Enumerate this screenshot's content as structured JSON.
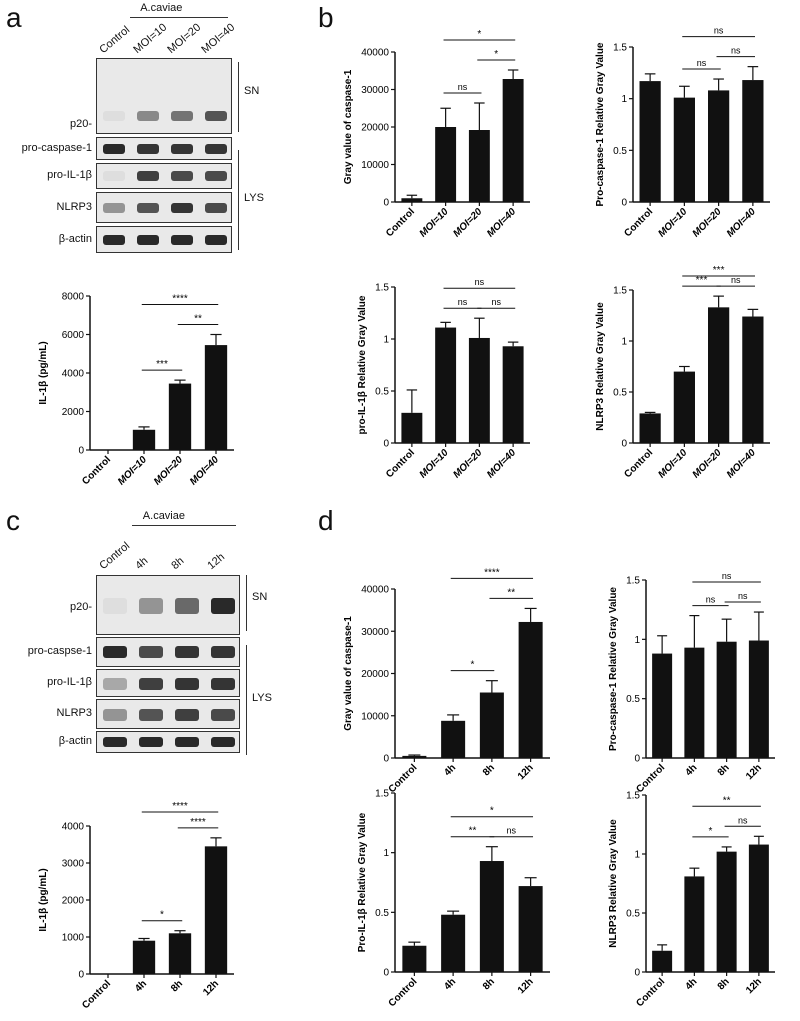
{
  "panels": {
    "a": {
      "letter": "a",
      "blot": {
        "group_label": "A.caviae",
        "lanes": [
          "Control",
          "MOI=10",
          "MOI=20",
          "MOI=40"
        ],
        "rows": [
          {
            "label": "p20-",
            "intensity": [
              0.0,
              0.45,
              0.55,
              0.7
            ]
          },
          {
            "label": "pro-caspase-1",
            "intensity": [
              0.9,
              0.85,
              0.85,
              0.85
            ]
          },
          {
            "label": "pro-IL-1β",
            "intensity": [
              0.05,
              0.8,
              0.75,
              0.75
            ]
          },
          {
            "label": "NLRP3",
            "intensity": [
              0.4,
              0.7,
              0.85,
              0.75
            ]
          },
          {
            "label": "β-actin",
            "intensity": [
              0.9,
              0.9,
              0.9,
              0.9
            ]
          }
        ],
        "sn": "SN",
        "lys": "LYS"
      }
    },
    "b": {
      "letter": "b"
    },
    "c": {
      "letter": "c",
      "blot": {
        "group_label": "A.caviae",
        "lanes": [
          "Control",
          "4h",
          "8h",
          "12h"
        ],
        "rows": [
          {
            "label": "p20-",
            "intensity": [
              0.05,
              0.4,
              0.6,
              0.9
            ]
          },
          {
            "label": "pro-caspse-1",
            "intensity": [
              0.9,
              0.75,
              0.85,
              0.85
            ]
          },
          {
            "label": "pro-IL-1β",
            "intensity": [
              0.3,
              0.8,
              0.85,
              0.85
            ]
          },
          {
            "label": "NLRP3",
            "intensity": [
              0.4,
              0.7,
              0.8,
              0.75
            ]
          },
          {
            "label": "β-actin",
            "intensity": [
              0.9,
              0.9,
              0.9,
              0.9
            ]
          }
        ],
        "sn": "SN",
        "lys": "LYS"
      }
    },
    "d": {
      "letter": "d"
    }
  },
  "chart_data": [
    {
      "id": "a_il1b",
      "type": "bar",
      "categories": [
        "Control",
        "MOI=10",
        "MOI=20",
        "MOI=40"
      ],
      "values": [
        0,
        1050,
        3450,
        5450
      ],
      "errors": [
        0,
        150,
        180,
        550
      ],
      "ylabel": "IL-1β (pg/mL)",
      "ylim": [
        0,
        8000
      ],
      "yticks": [
        0,
        2000,
        4000,
        6000,
        8000
      ],
      "sig": [
        {
          "from": 1,
          "to": 2,
          "label": "***"
        },
        {
          "from": 2,
          "to": 3,
          "label": "**"
        },
        {
          "from": 1,
          "to": 3,
          "label": "****"
        }
      ]
    },
    {
      "id": "b_casp",
      "type": "bar",
      "categories": [
        "Control",
        "MOI=10",
        "MOI=20",
        "MOI=40"
      ],
      "values": [
        1000,
        20000,
        19200,
        32800
      ],
      "errors": [
        800,
        5000,
        7200,
        2400
      ],
      "ylabel": "Gray value of caspase-1",
      "ylim": [
        0,
        40000
      ],
      "yticks": [
        0,
        10000,
        20000,
        30000,
        40000
      ],
      "sig": [
        {
          "from": 1,
          "to": 2,
          "label": "ns"
        },
        {
          "from": 2,
          "to": 3,
          "label": "*"
        },
        {
          "from": 1,
          "to": 3,
          "label": "*"
        }
      ]
    },
    {
      "id": "b_procasp",
      "type": "bar",
      "categories": [
        "Control",
        "MOI=10",
        "MOI=20",
        "MOI=40"
      ],
      "values": [
        1.17,
        1.01,
        1.08,
        1.18
      ],
      "errors": [
        0.07,
        0.11,
        0.11,
        0.13
      ],
      "ylabel": "Pro-caspase-1 Relative Gray Value",
      "ylim": [
        0,
        1.5
      ],
      "yticks": [
        0.0,
        0.5,
        1.0,
        1.5
      ],
      "sig": [
        {
          "from": 1,
          "to": 2,
          "label": "ns"
        },
        {
          "from": 2,
          "to": 3,
          "label": "ns"
        },
        {
          "from": 1,
          "to": 3,
          "label": "ns"
        }
      ]
    },
    {
      "id": "b_proil",
      "type": "bar",
      "categories": [
        "Control",
        "MOI=10",
        "MOI=20",
        "MOI=40"
      ],
      "values": [
        0.29,
        1.11,
        1.01,
        0.93
      ],
      "errors": [
        0.22,
        0.05,
        0.19,
        0.04
      ],
      "ylabel": "pro-IL-1β Relative Gray Value",
      "ylim": [
        0,
        1.5
      ],
      "yticks": [
        0.0,
        0.5,
        1.0,
        1.5
      ],
      "sig": [
        {
          "from": 1,
          "to": 2,
          "label": "ns"
        },
        {
          "from": 2,
          "to": 3,
          "label": "ns"
        },
        {
          "from": 1,
          "to": 3,
          "label": "ns"
        }
      ]
    },
    {
      "id": "b_nlrp3",
      "type": "bar",
      "categories": [
        "Control",
        "MOI=10",
        "MOI=20",
        "MOI=40"
      ],
      "values": [
        0.29,
        0.7,
        1.33,
        1.24
      ],
      "errors": [
        0.01,
        0.05,
        0.11,
        0.07
      ],
      "ylabel": "NLRP3 Relative Gray Value",
      "ylim": [
        0,
        1.5
      ],
      "yticks": [
        0.0,
        0.5,
        1.0,
        1.5
      ],
      "sig": [
        {
          "from": 1,
          "to": 2,
          "label": "***"
        },
        {
          "from": 2,
          "to": 3,
          "label": "ns"
        },
        {
          "from": 1,
          "to": 3,
          "label": "***"
        }
      ]
    },
    {
      "id": "c_il1b",
      "type": "bar",
      "categories": [
        "Control",
        "4h",
        "8h",
        "12h"
      ],
      "values": [
        0,
        900,
        1100,
        3450
      ],
      "errors": [
        0,
        60,
        70,
        230
      ],
      "ylabel": "IL-1β (pg/mL)",
      "ylim": [
        0,
        4000
      ],
      "yticks": [
        0,
        1000,
        2000,
        3000,
        4000
      ],
      "sig": [
        {
          "from": 1,
          "to": 2,
          "label": "*"
        },
        {
          "from": 2,
          "to": 3,
          "label": "****"
        },
        {
          "from": 1,
          "to": 3,
          "label": "****"
        }
      ]
    },
    {
      "id": "d_casp",
      "type": "bar",
      "categories": [
        "Control",
        "4h",
        "8h",
        "12h"
      ],
      "values": [
        500,
        8800,
        15500,
        32200
      ],
      "errors": [
        200,
        1400,
        2800,
        3200
      ],
      "ylabel": "Gray value of caspase-1",
      "ylim": [
        0,
        40000
      ],
      "yticks": [
        0,
        10000,
        20000,
        30000,
        40000
      ],
      "sig": [
        {
          "from": 1,
          "to": 2,
          "label": "*"
        },
        {
          "from": 2,
          "to": 3,
          "label": "**"
        },
        {
          "from": 1,
          "to": 3,
          "label": "****"
        }
      ]
    },
    {
      "id": "d_procasp",
      "type": "bar",
      "categories": [
        "Control",
        "4h",
        "8h",
        "12h"
      ],
      "values": [
        0.88,
        0.93,
        0.98,
        0.99
      ],
      "errors": [
        0.15,
        0.27,
        0.19,
        0.24
      ],
      "ylabel": "Pro-caspase-1 Relative Gray Value",
      "ylim": [
        0,
        1.5
      ],
      "yticks": [
        0.0,
        0.5,
        1.0,
        1.5
      ],
      "sig": [
        {
          "from": 1,
          "to": 2,
          "label": "ns"
        },
        {
          "from": 2,
          "to": 3,
          "label": "ns"
        },
        {
          "from": 1,
          "to": 3,
          "label": "ns"
        }
      ]
    },
    {
      "id": "d_proil",
      "type": "bar",
      "categories": [
        "Control",
        "4h",
        "8h",
        "12h"
      ],
      "values": [
        0.22,
        0.48,
        0.93,
        0.72
      ],
      "errors": [
        0.03,
        0.03,
        0.12,
        0.07
      ],
      "ylabel": "Pro-IL-1β Relative Gray Value",
      "ylim": [
        0,
        1.5
      ],
      "yticks": [
        0.0,
        0.5,
        1.0,
        1.5
      ],
      "sig": [
        {
          "from": 1,
          "to": 2,
          "label": "**"
        },
        {
          "from": 2,
          "to": 3,
          "label": "ns"
        },
        {
          "from": 1,
          "to": 3,
          "label": "*"
        }
      ]
    },
    {
      "id": "d_nlrp3",
      "type": "bar",
      "categories": [
        "Control",
        "4h",
        "8h",
        "12h"
      ],
      "values": [
        0.18,
        0.81,
        1.02,
        1.08
      ],
      "errors": [
        0.05,
        0.07,
        0.04,
        0.07
      ],
      "ylabel": "NLRP3 Relative Gray Value",
      "ylim": [
        0,
        1.5
      ],
      "yticks": [
        0.0,
        0.5,
        1.0,
        1.5
      ],
      "sig": [
        {
          "from": 1,
          "to": 2,
          "label": "*"
        },
        {
          "from": 2,
          "to": 3,
          "label": "ns"
        },
        {
          "from": 1,
          "to": 3,
          "label": "**"
        }
      ]
    }
  ]
}
